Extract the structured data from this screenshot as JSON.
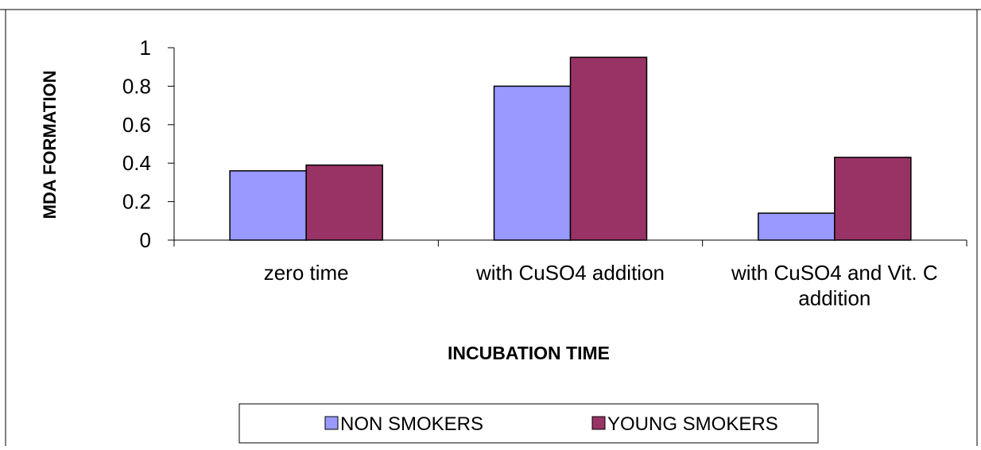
{
  "chart_data": {
    "type": "bar",
    "title": "",
    "xlabel": "INCUBATION TIME",
    "ylabel": "MDA FORMATION",
    "categories": [
      [
        "zero time"
      ],
      [
        "with CuSO4 addition"
      ],
      [
        "with CuSO4 and Vit. C",
        "addition"
      ]
    ],
    "series": [
      {
        "name": "NON SMOKERS",
        "values": [
          0.36,
          0.8,
          0.14
        ],
        "color": "#9999ff"
      },
      {
        "name": "YOUNG SMOKERS",
        "values": [
          0.39,
          0.95,
          0.43
        ],
        "color": "#993366"
      }
    ],
    "ylim": [
      0,
      1
    ],
    "yticks": [
      0,
      0.2,
      0.4,
      0.6,
      0.8,
      1
    ],
    "ytick_labels": [
      "0",
      "0.2",
      "0.4",
      "0.6",
      "0.8",
      "1"
    ],
    "grid": false,
    "legend_position": "bottom"
  }
}
